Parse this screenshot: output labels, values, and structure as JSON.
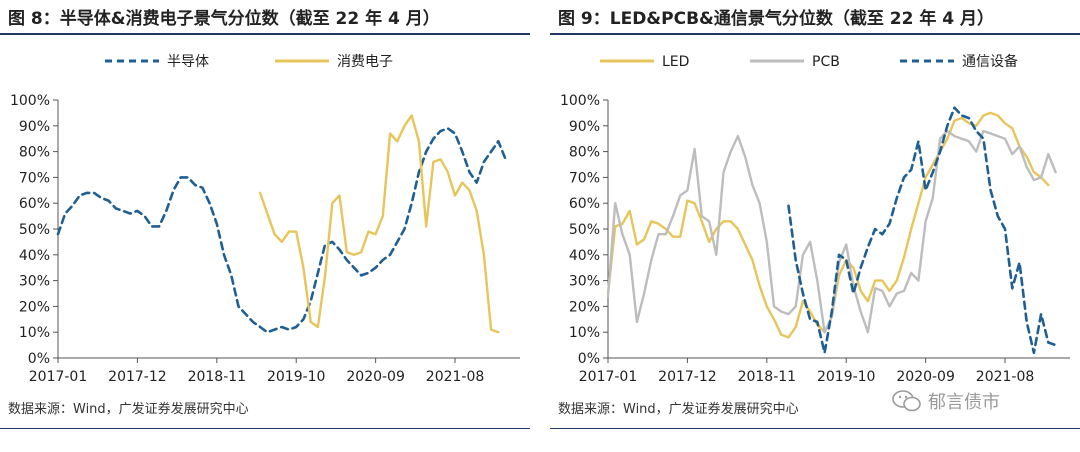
{
  "chart_data": [
    {
      "type": "line",
      "title": "图 8：半导体&消费电子景气分位数（截至 22 年 4 月）",
      "ylim": [
        0,
        100
      ],
      "y_ticks": [
        "0%",
        "10%",
        "20%",
        "30%",
        "40%",
        "50%",
        "60%",
        "70%",
        "80%",
        "90%",
        "100%"
      ],
      "x_ticks": [
        "2017-01",
        "2017-12",
        "2018-11",
        "2019-10",
        "2020-09",
        "2021-08"
      ],
      "x_range": [
        0,
        64
      ],
      "x_tick_positions": [
        0,
        11,
        22,
        33,
        44,
        55
      ],
      "legend_position": "top-center",
      "source": "数据来源：Wind，广发证券发展研究中心",
      "series": [
        {
          "name": "半导体",
          "color": "#1f5f94",
          "dash": true,
          "points": [
            [
              0,
              48
            ],
            [
              1,
              56
            ],
            [
              2,
              59
            ],
            [
              3,
              63
            ],
            [
              4,
              64
            ],
            [
              5,
              64
            ],
            [
              6,
              62
            ],
            [
              7,
              61
            ],
            [
              8,
              58
            ],
            [
              9,
              57
            ],
            [
              10,
              56
            ],
            [
              11,
              57
            ],
            [
              12,
              55
            ],
            [
              13,
              51
            ],
            [
              14,
              51
            ],
            [
              15,
              57
            ],
            [
              16,
              65
            ],
            [
              17,
              70
            ],
            [
              18,
              70
            ],
            [
              19,
              67
            ],
            [
              20,
              66
            ],
            [
              21,
              60
            ],
            [
              22,
              52
            ],
            [
              23,
              40
            ],
            [
              24,
              32
            ],
            [
              25,
              20
            ],
            [
              26,
              17
            ],
            [
              27,
              14
            ],
            [
              28,
              12
            ],
            [
              29,
              10
            ],
            [
              30,
              11
            ],
            [
              31,
              12
            ],
            [
              32,
              11
            ],
            [
              33,
              12
            ],
            [
              34,
              15
            ],
            [
              35,
              22
            ],
            [
              36,
              33
            ],
            [
              37,
              44
            ],
            [
              38,
              45
            ],
            [
              39,
              42
            ],
            [
              40,
              38
            ],
            [
              41,
              35
            ],
            [
              42,
              32
            ],
            [
              43,
              33
            ],
            [
              44,
              35
            ],
            [
              45,
              38
            ],
            [
              46,
              40
            ],
            [
              47,
              45
            ],
            [
              48,
              50
            ],
            [
              49,
              60
            ],
            [
              50,
              72
            ],
            [
              51,
              80
            ],
            [
              52,
              85
            ],
            [
              53,
              88
            ],
            [
              54,
              89
            ],
            [
              55,
              87
            ],
            [
              56,
              80
            ],
            [
              57,
              72
            ],
            [
              58,
              68
            ],
            [
              59,
              76
            ],
            [
              60,
              80
            ],
            [
              61,
              84
            ],
            [
              62,
              77
            ]
          ]
        },
        {
          "name": "消费电子",
          "color": "#e8c55a",
          "dash": false,
          "points": [
            [
              28,
              64
            ],
            [
              29,
              56
            ],
            [
              30,
              48
            ],
            [
              31,
              45
            ],
            [
              32,
              49
            ],
            [
              33,
              49
            ],
            [
              34,
              35
            ],
            [
              35,
              14
            ],
            [
              36,
              12
            ],
            [
              37,
              32
            ],
            [
              38,
              60
            ],
            [
              39,
              63
            ],
            [
              40,
              41
            ],
            [
              41,
              40
            ],
            [
              42,
              41
            ],
            [
              43,
              49
            ],
            [
              44,
              48
            ],
            [
              45,
              55
            ],
            [
              46,
              87
            ],
            [
              47,
              84
            ],
            [
              48,
              90
            ],
            [
              49,
              94
            ],
            [
              50,
              84
            ],
            [
              51,
              51
            ],
            [
              52,
              76
            ],
            [
              53,
              77
            ],
            [
              54,
              72
            ],
            [
              55,
              63
            ],
            [
              56,
              68
            ],
            [
              57,
              65
            ],
            [
              58,
              57
            ],
            [
              59,
              40
            ],
            [
              60,
              11
            ],
            [
              61,
              10
            ]
          ]
        }
      ]
    },
    {
      "type": "line",
      "title": "图 9：LED&PCB&通信景气分位数（截至 22 年 4 月）",
      "ylim": [
        0,
        100
      ],
      "y_ticks": [
        "0%",
        "10%",
        "20%",
        "30%",
        "40%",
        "50%",
        "60%",
        "70%",
        "80%",
        "90%",
        "100%"
      ],
      "x_ticks": [
        "2017-01",
        "2017-12",
        "2018-11",
        "2019-10",
        "2020-09",
        "2021-08"
      ],
      "x_range": [
        0,
        64
      ],
      "x_tick_positions": [
        0,
        11,
        22,
        33,
        44,
        55
      ],
      "legend_position": "top-center",
      "source": "数据来源：Wind，广发证券发展研究中心",
      "series": [
        {
          "name": "LED",
          "color": "#e8c55a",
          "dash": false,
          "points": [
            [
              0,
              25
            ],
            [
              1,
              51
            ],
            [
              2,
              52
            ],
            [
              3,
              57
            ],
            [
              4,
              44
            ],
            [
              5,
              46
            ],
            [
              6,
              53
            ],
            [
              7,
              52
            ],
            [
              8,
              50
            ],
            [
              9,
              47
            ],
            [
              10,
              47
            ],
            [
              11,
              61
            ],
            [
              12,
              60
            ],
            [
              13,
              53
            ],
            [
              14,
              45
            ],
            [
              15,
              50
            ],
            [
              16,
              53
            ],
            [
              17,
              53
            ],
            [
              18,
              50
            ],
            [
              19,
              44
            ],
            [
              20,
              38
            ],
            [
              21,
              28
            ],
            [
              22,
              20
            ],
            [
              23,
              15
            ],
            [
              24,
              9
            ],
            [
              25,
              8
            ],
            [
              26,
              12
            ],
            [
              27,
              22
            ],
            [
              28,
              18
            ],
            [
              29,
              13
            ],
            [
              30,
              10
            ],
            [
              31,
              16
            ],
            [
              32,
              32
            ],
            [
              33,
              38
            ],
            [
              34,
              35
            ],
            [
              35,
              26
            ],
            [
              36,
              22
            ],
            [
              37,
              30
            ],
            [
              38,
              30
            ],
            [
              39,
              26
            ],
            [
              40,
              30
            ],
            [
              41,
              39
            ],
            [
              42,
              50
            ],
            [
              43,
              60
            ],
            [
              44,
              70
            ],
            [
              45,
              75
            ],
            [
              46,
              80
            ],
            [
              47,
              85
            ],
            [
              48,
              92
            ],
            [
              49,
              93
            ],
            [
              50,
              91
            ],
            [
              51,
              90
            ],
            [
              52,
              94
            ],
            [
              53,
              95
            ],
            [
              54,
              94
            ],
            [
              55,
              91
            ],
            [
              56,
              89
            ],
            [
              57,
              82
            ],
            [
              58,
              78
            ],
            [
              59,
              72
            ],
            [
              60,
              70
            ],
            [
              61,
              67
            ]
          ]
        },
        {
          "name": "PCB",
          "color": "#bdbdbd",
          "dash": false,
          "points": [
            [
              0,
              24
            ],
            [
              1,
              60
            ],
            [
              2,
              48
            ],
            [
              3,
              40
            ],
            [
              4,
              14
            ],
            [
              5,
              25
            ],
            [
              6,
              38
            ],
            [
              7,
              48
            ],
            [
              8,
              48
            ],
            [
              9,
              55
            ],
            [
              10,
              63
            ],
            [
              11,
              65
            ],
            [
              12,
              81
            ],
            [
              13,
              55
            ],
            [
              14,
              53
            ],
            [
              15,
              40
            ],
            [
              16,
              72
            ],
            [
              17,
              80
            ],
            [
              18,
              86
            ],
            [
              19,
              78
            ],
            [
              20,
              67
            ],
            [
              21,
              60
            ],
            [
              22,
              45
            ],
            [
              23,
              20
            ],
            [
              24,
              18
            ],
            [
              25,
              17
            ],
            [
              26,
              20
            ],
            [
              27,
              40
            ],
            [
              28,
              45
            ],
            [
              29,
              30
            ],
            [
              30,
              10
            ],
            [
              31,
              16
            ],
            [
              32,
              37
            ],
            [
              33,
              44
            ],
            [
              34,
              28
            ],
            [
              35,
              18
            ],
            [
              36,
              10
            ],
            [
              37,
              27
            ],
            [
              38,
              26
            ],
            [
              39,
              20
            ],
            [
              40,
              25
            ],
            [
              41,
              26
            ],
            [
              42,
              33
            ],
            [
              43,
              30
            ],
            [
              44,
              53
            ],
            [
              45,
              62
            ],
            [
              46,
              85
            ],
            [
              47,
              88
            ],
            [
              48,
              86
            ],
            [
              49,
              85
            ],
            [
              50,
              84
            ],
            [
              51,
              80
            ],
            [
              52,
              88
            ],
            [
              53,
              87
            ],
            [
              54,
              86
            ],
            [
              55,
              85
            ],
            [
              56,
              79
            ],
            [
              57,
              82
            ],
            [
              58,
              74
            ],
            [
              59,
              69
            ],
            [
              60,
              70
            ],
            [
              61,
              79
            ],
            [
              62,
              72
            ]
          ]
        },
        {
          "name": "通信设备",
          "color": "#1f5f94",
          "dash": true,
          "points": [
            [
              25,
              59
            ],
            [
              26,
              38
            ],
            [
              27,
              25
            ],
            [
              28,
              15
            ],
            [
              29,
              14
            ],
            [
              30,
              2
            ],
            [
              31,
              18
            ],
            [
              32,
              40
            ],
            [
              33,
              38
            ],
            [
              34,
              25
            ],
            [
              35,
              35
            ],
            [
              36,
              43
            ],
            [
              37,
              50
            ],
            [
              38,
              48
            ],
            [
              39,
              52
            ],
            [
              40,
              62
            ],
            [
              41,
              70
            ],
            [
              42,
              73
            ],
            [
              43,
              84
            ],
            [
              44,
              65
            ],
            [
              45,
              72
            ],
            [
              46,
              80
            ],
            [
              47,
              90
            ],
            [
              48,
              97
            ],
            [
              49,
              94
            ],
            [
              50,
              93
            ],
            [
              51,
              88
            ],
            [
              52,
              85
            ],
            [
              53,
              65
            ],
            [
              54,
              55
            ],
            [
              55,
              50
            ],
            [
              56,
              27
            ],
            [
              57,
              37
            ],
            [
              58,
              14
            ],
            [
              59,
              2
            ],
            [
              60,
              17
            ],
            [
              61,
              6
            ],
            [
              62,
              5
            ]
          ]
        }
      ]
    }
  ],
  "watermark": {
    "text": "郁言债市",
    "icon": "wechat-icon"
  }
}
